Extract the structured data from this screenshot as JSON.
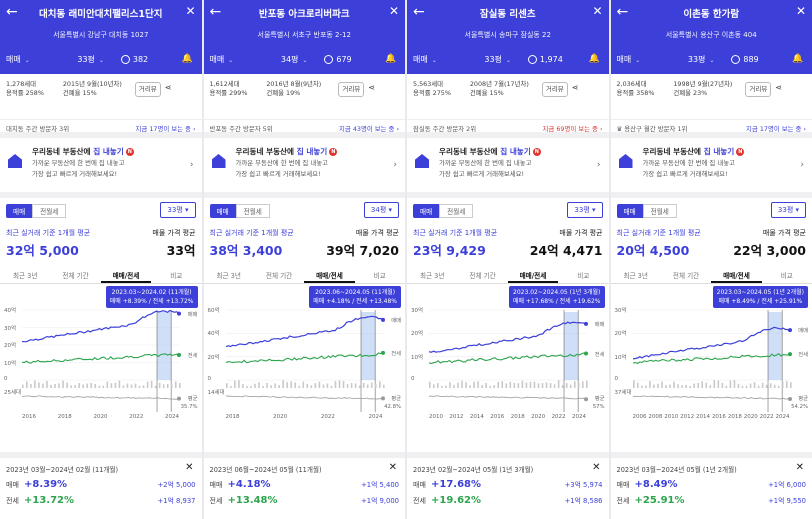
{
  "panels": [
    {
      "title": "대치동 래미안대치팰리스1단지",
      "address": "서울특별시 강남구 대치동 1027",
      "trade_type": "매매",
      "area": "33평",
      "comments": "382",
      "households": "1,278세대",
      "far": "용적률 258%",
      "built": "2015년 9월(10년차)",
      "bcr": "건폐율 15%",
      "street_view": "거리뷰",
      "visit_label": "대치동 주간 방문자 3위",
      "visit_count": "지금 17명이 보는 중 ›",
      "visit_red": false,
      "promo_title_a": "우리동네 부동산에 ",
      "promo_title_b": "집 내놓기",
      "promo_badge": "N",
      "promo_sub1": "가까운 부동산에 한 번에 집 내놓고",
      "promo_sub2": "가장 쉽고 빠르게 거래해보세요!",
      "tab_sale": "매매",
      "tab_jeonse": "전월세",
      "area_select": "33평 ▾",
      "recent_label": "최근 실거래 기준 1개월 평균",
      "avg_label": "매물 가격 평균",
      "recent_price": "32억 5,000",
      "avg_price": "33억",
      "chart_tabs": [
        "최근 3년",
        "전체 기간",
        "매매/전세",
        "비교"
      ],
      "tooltip_period": "2023.03~2024.02 (11개월)",
      "tooltip_values": "매매 +8.39% / 전세 +13.72%",
      "y_labels": [
        "40억",
        "30억",
        "20억",
        "10억",
        "0"
      ],
      "vol_label": "25세대",
      "x_labels": [
        "2016",
        "2018",
        "2020",
        "2022",
        "2024"
      ],
      "series_labels": [
        "매매",
        "전세",
        "평균"
      ],
      "avg_pct": "35.7%",
      "summary_period": "2023년 03월~2024년 02월 (11개월)",
      "summary_sale_label": "매매",
      "summary_sale_pct": "+8.39%",
      "summary_sale_amt": "+2억 5,000",
      "summary_jeonse_label": "전세",
      "summary_jeonse_pct": "+13.72%",
      "summary_jeonse_amt": "+1억 8,937"
    },
    {
      "title": "반포동 아크로리버파크",
      "address": "서울특별시 서초구 반포동 2-12",
      "trade_type": "매매",
      "area": "34평",
      "comments": "679",
      "households": "1,612세대",
      "far": "용적률 299%",
      "built": "2016년 8월(9년차)",
      "bcr": "건폐율 19%",
      "street_view": "거리뷰",
      "visit_label": "반포동 주간 방문자 5위",
      "visit_count": "지금 43명이 보는 중 ›",
      "visit_red": false,
      "promo_title_a": "우리동네 부동산에 ",
      "promo_title_b": "집 내놓기",
      "promo_badge": "N",
      "promo_sub1": "가까운 부동산에 한 번에 집 내놓고",
      "promo_sub2": "가장 쉽고 빠르게 거래해보세요!",
      "tab_sale": "매매",
      "tab_jeonse": "전월세",
      "area_select": "34평 ▾",
      "recent_label": "최근 실거래 기준 1개월 평균",
      "avg_label": "매물 가격 평균",
      "recent_price": "38억 3,400",
      "avg_price": "39억 7,020",
      "chart_tabs": [
        "최근 3년",
        "전체 기간",
        "매매/전세",
        "비교"
      ],
      "tooltip_period": "2023.06~2024.05 (11개월)",
      "tooltip_values": "매매 +4.18% / 전세 +13.48%",
      "y_labels": [
        "60억",
        "40억",
        "20억",
        "0"
      ],
      "vol_label": "14세대",
      "x_labels": [
        "2018",
        "2020",
        "2022",
        "2024"
      ],
      "series_labels": [
        "매매",
        "전세",
        "평균"
      ],
      "avg_pct": "42.8%",
      "summary_period": "2023년 06월~2024년 05월 (11개월)",
      "summary_sale_label": "매매",
      "summary_sale_pct": "+4.18%",
      "summary_sale_amt": "+1억 5,400",
      "summary_jeonse_label": "전세",
      "summary_jeonse_pct": "+13.48%",
      "summary_jeonse_amt": "+1억 9,000"
    },
    {
      "title": "잠실동 리센츠",
      "address": "서울특별시 송파구 잠실동 22",
      "trade_type": "매매",
      "area": "33평",
      "comments": "1,974",
      "households": "5,563세대",
      "far": "용적률 275%",
      "built": "2008년 7월(17년차)",
      "bcr": "건폐율 15%",
      "street_view": "거리뷰",
      "visit_label": "잠실동 주간 방문자 2위",
      "visit_count": "지금 69명이 보는 중 ›",
      "visit_red": true,
      "promo_title_a": "우리동네 부동산에 ",
      "promo_title_b": "집 내놓기",
      "promo_badge": "N",
      "promo_sub1": "가까운 부동산에 한 번에 집 내놓고",
      "promo_sub2": "가장 쉽고 빠르게 거래해보세요!",
      "tab_sale": "매매",
      "tab_jeonse": "전월세",
      "area_select": "33평 ▾",
      "recent_label": "최근 실거래 기준 1개월 평균",
      "avg_label": "매물 가격 평균",
      "recent_price": "23억 9,429",
      "avg_price": "24억 4,471",
      "chart_tabs": [
        "최근 3년",
        "전체 기간",
        "매매/전세",
        "비교"
      ],
      "tooltip_period": "2023.02~2024.05 (1년 3개월)",
      "tooltip_values": "매매 +17.68% / 전세 +19.62%",
      "y_labels": [
        "30억",
        "20억",
        "10억",
        "0"
      ],
      "vol_label": "",
      "x_labels": [
        "2010",
        "2012",
        "2014",
        "2016",
        "2018",
        "2020",
        "2022",
        "2024"
      ],
      "series_labels": [
        "매매",
        "전세",
        "평균"
      ],
      "avg_pct": "57%",
      "summary_period": "2023년 02월~2024년 05월 (1년 3개월)",
      "summary_sale_label": "매매",
      "summary_sale_pct": "+17.68%",
      "summary_sale_amt": "+3억 5,974",
      "summary_jeonse_label": "전세",
      "summary_jeonse_pct": "+19.62%",
      "summary_jeonse_amt": "+1억 8,586"
    },
    {
      "title": "이촌동 한가람",
      "address": "서울특별시 용산구 이촌동 404",
      "trade_type": "매매",
      "area": "33평",
      "comments": "889",
      "households": "2,036세대",
      "far": "용적률 358%",
      "built": "1998년 9월(27년차)",
      "bcr": "건폐율 23%",
      "street_view": "거리뷰",
      "visit_label": "♛ 용산구 월간 방문자 1위",
      "visit_count": "지금 17명이 보는 중 ›",
      "visit_red": false,
      "promo_title_a": "우리동네 부동산에 ",
      "promo_title_b": "집 내놓기",
      "promo_badge": "N",
      "promo_sub1": "가까운 부동산에 한 번에 집 내놓고",
      "promo_sub2": "가장 쉽고 빠르게 거래해보세요!",
      "tab_sale": "매매",
      "tab_jeonse": "전월세",
      "area_select": "33평 ▾",
      "recent_label": "최근 실거래 기준 1개월 평균",
      "avg_label": "매물 가격 평균",
      "recent_price": "20억 4,500",
      "avg_price": "22억 3,000",
      "chart_tabs": [
        "최근 3년",
        "전체 기간",
        "매매/전세",
        "비교"
      ],
      "tooltip_period": "2023.03~2024.05 (1년 2개월)",
      "tooltip_values": "매매 +8.49% / 전세 +25.91%",
      "y_labels": [
        "30억",
        "20억",
        "10억",
        "0"
      ],
      "vol_label": "37세대",
      "x_labels": [
        "2006",
        "2008",
        "2010",
        "2012",
        "2014",
        "2016",
        "2018",
        "2020",
        "2022",
        "2024"
      ],
      "series_labels": [
        "매매",
        "전세",
        "평균"
      ],
      "avg_pct": "54.2%",
      "summary_period": "2023년 03월~2024년 05월 (1년 2개월)",
      "summary_sale_label": "매매",
      "summary_sale_pct": "+8.49%",
      "summary_sale_amt": "+1억 6,000",
      "summary_jeonse_label": "전세",
      "summary_jeonse_pct": "+25.91%",
      "summary_jeonse_amt": "+1억 9,550"
    }
  ],
  "colors": {
    "brand": "#3c3fd8",
    "sale_line": "#3c3fd8",
    "jeonse_line": "#2da44e",
    "ratio_line": "#999999",
    "highlight_sale": "#a9c4f2",
    "highlight_jeonse": "#f5a89a",
    "alert": "#e0352e"
  },
  "icons": [
    "back-arrow-icon",
    "close-icon",
    "comment-icon",
    "bell-icon",
    "share-icon",
    "house-icon",
    "chevron-right-icon"
  ]
}
